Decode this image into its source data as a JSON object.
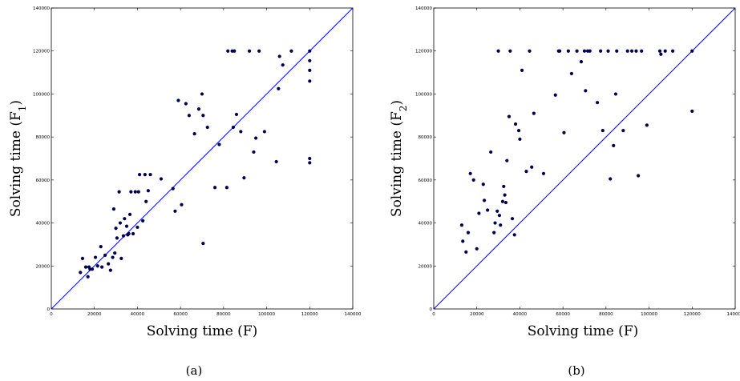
{
  "chart_data": [
    {
      "type": "scatter",
      "caption": "(a)",
      "xlabel": "Solving time (F)",
      "ylabel_main": "Solving time (F",
      "ylabel_sub": "1",
      "ylabel_close": ")",
      "xlim": [
        0,
        140000
      ],
      "ylim": [
        0,
        140000
      ],
      "xticks": [
        "0",
        "20000",
        "40000",
        "60000",
        "80000",
        "100000",
        "120000",
        "140000"
      ],
      "yticks": [
        "0",
        "20000",
        "40000",
        "60000",
        "80000",
        "100000",
        "120000",
        "140000"
      ],
      "diagonal": [
        [
          0,
          0
        ],
        [
          140000,
          140000
        ]
      ],
      "colors": {
        "points": "#000050",
        "diagonal": "#0000ff"
      },
      "points": [
        [
          13500,
          17000
        ],
        [
          14500,
          23500
        ],
        [
          16000,
          19500
        ],
        [
          17000,
          15000
        ],
        [
          18000,
          18500
        ],
        [
          17500,
          19500
        ],
        [
          19000,
          18500
        ],
        [
          20500,
          24000
        ],
        [
          21500,
          20000
        ],
        [
          23000,
          29000
        ],
        [
          23500,
          19500
        ],
        [
          25000,
          25000
        ],
        [
          26500,
          21000
        ],
        [
          27500,
          18000
        ],
        [
          28500,
          24000
        ],
        [
          29000,
          46500
        ],
        [
          29500,
          26000
        ],
        [
          30000,
          37500
        ],
        [
          30500,
          33000
        ],
        [
          31500,
          54500
        ],
        [
          32000,
          40000
        ],
        [
          32500,
          23500
        ],
        [
          33500,
          34000
        ],
        [
          34000,
          42000
        ],
        [
          35000,
          38500
        ],
        [
          35500,
          34500
        ],
        [
          36000,
          35000
        ],
        [
          36500,
          44000
        ],
        [
          37000,
          54500
        ],
        [
          38000,
          35000
        ],
        [
          39000,
          54500
        ],
        [
          40000,
          38000
        ],
        [
          40500,
          54500
        ],
        [
          41000,
          62500
        ],
        [
          42500,
          41000
        ],
        [
          43500,
          62500
        ],
        [
          44000,
          50000
        ],
        [
          45000,
          55000
        ],
        [
          46000,
          62500
        ],
        [
          51000,
          60500
        ],
        [
          56500,
          56000
        ],
        [
          57500,
          45500
        ],
        [
          59000,
          97000
        ],
        [
          60500,
          48500
        ],
        [
          62500,
          95500
        ],
        [
          64000,
          90000
        ],
        [
          66500,
          81500
        ],
        [
          68500,
          93000
        ],
        [
          70000,
          100000
        ],
        [
          70500,
          90000
        ],
        [
          70500,
          30500
        ],
        [
          72500,
          84500
        ],
        [
          76000,
          56500
        ],
        [
          78000,
          76500
        ],
        [
          81500,
          56500
        ],
        [
          82000,
          120000
        ],
        [
          84000,
          120000
        ],
        [
          84500,
          84500
        ],
        [
          85000,
          120000
        ],
        [
          86000,
          90500
        ],
        [
          88000,
          82500
        ],
        [
          89500,
          61000
        ],
        [
          92000,
          120000
        ],
        [
          94000,
          73000
        ],
        [
          95000,
          79500
        ],
        [
          96500,
          120000
        ],
        [
          99000,
          82500
        ],
        [
          104500,
          68500
        ],
        [
          105500,
          102500
        ],
        [
          106000,
          117500
        ],
        [
          107500,
          113500
        ],
        [
          111500,
          120000
        ],
        [
          120000,
          120000
        ],
        [
          120000,
          115500
        ],
        [
          120000,
          111000
        ],
        [
          120000,
          106000
        ],
        [
          120000,
          70000
        ],
        [
          120000,
          68000
        ]
      ]
    },
    {
      "type": "scatter",
      "caption": "(b)",
      "xlabel": "Solving time (F)",
      "ylabel_main": "Solving time (F",
      "ylabel_sub": "2",
      "ylabel_close": ")",
      "xlim": [
        0,
        140000
      ],
      "ylim": [
        0,
        140000
      ],
      "xticks": [
        "0",
        "20000",
        "40000",
        "60000",
        "80000",
        "100000",
        "120000",
        "140000"
      ],
      "yticks": [
        "0",
        "20000",
        "40000",
        "60000",
        "80000",
        "100000",
        "120000",
        "140000"
      ],
      "diagonal": [
        [
          0,
          0
        ],
        [
          140000,
          140000
        ]
      ],
      "colors": {
        "points": "#000050",
        "diagonal": "#0000ff"
      },
      "points": [
        [
          13000,
          39000
        ],
        [
          13500,
          31500
        ],
        [
          15000,
          26500
        ],
        [
          16000,
          35500
        ],
        [
          17000,
          63000
        ],
        [
          18500,
          60000
        ],
        [
          20000,
          28000
        ],
        [
          21000,
          44500
        ],
        [
          23000,
          58000
        ],
        [
          23500,
          50500
        ],
        [
          25000,
          46000
        ],
        [
          26500,
          73000
        ],
        [
          28000,
          35500
        ],
        [
          28500,
          40000
        ],
        [
          29500,
          45500
        ],
        [
          30000,
          120000
        ],
        [
          30500,
          43500
        ],
        [
          31000,
          39000
        ],
        [
          32000,
          50000
        ],
        [
          32500,
          57000
        ],
        [
          33000,
          53000
        ],
        [
          33500,
          49500
        ],
        [
          34000,
          69000
        ],
        [
          35000,
          89500
        ],
        [
          35500,
          120000
        ],
        [
          36500,
          42000
        ],
        [
          37500,
          34500
        ],
        [
          38000,
          86000
        ],
        [
          39500,
          83000
        ],
        [
          40000,
          79000
        ],
        [
          41000,
          111000
        ],
        [
          43000,
          64000
        ],
        [
          44500,
          120000
        ],
        [
          45500,
          66000
        ],
        [
          46500,
          91000
        ],
        [
          51000,
          63000
        ],
        [
          56500,
          99500
        ],
        [
          58000,
          120000
        ],
        [
          58500,
          120000
        ],
        [
          60500,
          82000
        ],
        [
          62500,
          120000
        ],
        [
          64000,
          109500
        ],
        [
          66500,
          120000
        ],
        [
          68500,
          115000
        ],
        [
          70000,
          120000
        ],
        [
          70500,
          101500
        ],
        [
          71500,
          120000
        ],
        [
          72500,
          120000
        ],
        [
          76000,
          96000
        ],
        [
          77500,
          120000
        ],
        [
          78500,
          83000
        ],
        [
          81000,
          120000
        ],
        [
          82000,
          60500
        ],
        [
          83500,
          76000
        ],
        [
          84500,
          100000
        ],
        [
          85000,
          120000
        ],
        [
          88000,
          83000
        ],
        [
          90000,
          120000
        ],
        [
          92000,
          120000
        ],
        [
          94000,
          120000
        ],
        [
          95000,
          62000
        ],
        [
          96500,
          120000
        ],
        [
          99000,
          85500
        ],
        [
          105000,
          120000
        ],
        [
          105500,
          118500
        ],
        [
          107500,
          120000
        ],
        [
          111000,
          120000
        ],
        [
          120000,
          120000
        ],
        [
          120000,
          92000
        ]
      ]
    }
  ]
}
